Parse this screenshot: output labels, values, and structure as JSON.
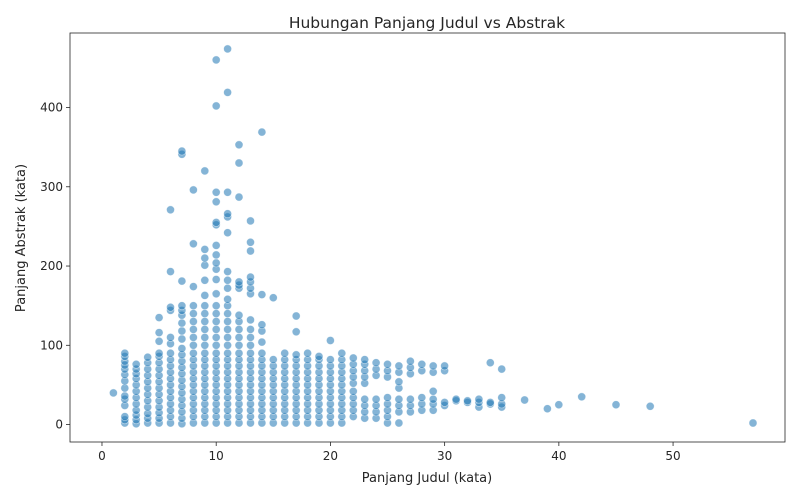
{
  "chart_data": {
    "type": "scatter",
    "title": "Hubungan Panjang Judul vs Abstrak",
    "xlabel": "Panjang Judul (kata)",
    "ylabel": "Panjang Abstrak (kata)",
    "xlim": [
      -2.8,
      59.8
    ],
    "ylim": [
      -22,
      494
    ],
    "xticks": [
      0,
      10,
      20,
      30,
      40,
      50
    ],
    "yticks": [
      0,
      100,
      200,
      300,
      400
    ],
    "grid": false,
    "point_color": "#1f77b4",
    "points": [
      [
        1,
        40
      ],
      [
        2,
        2
      ],
      [
        2,
        6
      ],
      [
        2,
        10
      ],
      [
        2,
        24
      ],
      [
        2,
        32
      ],
      [
        2,
        36
      ],
      [
        2,
        46
      ],
      [
        2,
        55
      ],
      [
        2,
        63
      ],
      [
        2,
        70
      ],
      [
        2,
        75
      ],
      [
        2,
        80
      ],
      [
        2,
        86
      ],
      [
        2,
        90
      ],
      [
        3,
        1
      ],
      [
        3,
        6
      ],
      [
        3,
        12
      ],
      [
        3,
        18
      ],
      [
        3,
        26
      ],
      [
        3,
        34
      ],
      [
        3,
        42
      ],
      [
        3,
        50
      ],
      [
        3,
        58
      ],
      [
        3,
        64
      ],
      [
        3,
        70
      ],
      [
        3,
        76
      ],
      [
        4,
        2
      ],
      [
        4,
        8
      ],
      [
        4,
        14
      ],
      [
        4,
        22
      ],
      [
        4,
        30
      ],
      [
        4,
        38
      ],
      [
        4,
        46
      ],
      [
        4,
        54
      ],
      [
        4,
        62
      ],
      [
        4,
        70
      ],
      [
        4,
        78
      ],
      [
        4,
        85
      ],
      [
        5,
        2
      ],
      [
        5,
        8
      ],
      [
        5,
        15
      ],
      [
        5,
        22
      ],
      [
        5,
        30
      ],
      [
        5,
        38
      ],
      [
        5,
        46
      ],
      [
        5,
        54
      ],
      [
        5,
        62
      ],
      [
        5,
        70
      ],
      [
        5,
        78
      ],
      [
        5,
        86
      ],
      [
        5,
        90
      ],
      [
        5,
        105
      ],
      [
        5,
        116
      ],
      [
        5,
        135
      ],
      [
        6,
        2
      ],
      [
        6,
        10
      ],
      [
        6,
        18
      ],
      [
        6,
        26
      ],
      [
        6,
        34
      ],
      [
        6,
        42
      ],
      [
        6,
        50
      ],
      [
        6,
        58
      ],
      [
        6,
        66
      ],
      [
        6,
        74
      ],
      [
        6,
        82
      ],
      [
        6,
        90
      ],
      [
        6,
        102
      ],
      [
        6,
        110
      ],
      [
        6,
        144
      ],
      [
        6,
        148
      ],
      [
        6,
        193
      ],
      [
        6,
        271
      ],
      [
        7,
        1
      ],
      [
        7,
        8
      ],
      [
        7,
        16
      ],
      [
        7,
        24
      ],
      [
        7,
        32
      ],
      [
        7,
        40
      ],
      [
        7,
        48
      ],
      [
        7,
        56
      ],
      [
        7,
        64
      ],
      [
        7,
        72
      ],
      [
        7,
        80
      ],
      [
        7,
        88
      ],
      [
        7,
        96
      ],
      [
        7,
        108
      ],
      [
        7,
        118
      ],
      [
        7,
        128
      ],
      [
        7,
        138
      ],
      [
        7,
        144
      ],
      [
        7,
        150
      ],
      [
        7,
        181
      ],
      [
        7,
        341
      ],
      [
        7,
        345
      ],
      [
        8,
        2
      ],
      [
        8,
        10
      ],
      [
        8,
        18
      ],
      [
        8,
        26
      ],
      [
        8,
        34
      ],
      [
        8,
        42
      ],
      [
        8,
        50
      ],
      [
        8,
        58
      ],
      [
        8,
        66
      ],
      [
        8,
        74
      ],
      [
        8,
        82
      ],
      [
        8,
        90
      ],
      [
        8,
        100
      ],
      [
        8,
        110
      ],
      [
        8,
        120
      ],
      [
        8,
        130
      ],
      [
        8,
        140
      ],
      [
        8,
        150
      ],
      [
        8,
        174
      ],
      [
        8,
        228
      ],
      [
        8,
        296
      ],
      [
        9,
        2
      ],
      [
        9,
        10
      ],
      [
        9,
        18
      ],
      [
        9,
        26
      ],
      [
        9,
        34
      ],
      [
        9,
        42
      ],
      [
        9,
        50
      ],
      [
        9,
        58
      ],
      [
        9,
        66
      ],
      [
        9,
        74
      ],
      [
        9,
        82
      ],
      [
        9,
        90
      ],
      [
        9,
        100
      ],
      [
        9,
        110
      ],
      [
        9,
        120
      ],
      [
        9,
        130
      ],
      [
        9,
        140
      ],
      [
        9,
        150
      ],
      [
        9,
        163
      ],
      [
        9,
        182
      ],
      [
        9,
        201
      ],
      [
        9,
        210
      ],
      [
        9,
        221
      ],
      [
        9,
        320
      ],
      [
        10,
        2
      ],
      [
        10,
        10
      ],
      [
        10,
        18
      ],
      [
        10,
        26
      ],
      [
        10,
        34
      ],
      [
        10,
        42
      ],
      [
        10,
        50
      ],
      [
        10,
        58
      ],
      [
        10,
        66
      ],
      [
        10,
        74
      ],
      [
        10,
        82
      ],
      [
        10,
        90
      ],
      [
        10,
        100
      ],
      [
        10,
        110
      ],
      [
        10,
        120
      ],
      [
        10,
        130
      ],
      [
        10,
        140
      ],
      [
        10,
        150
      ],
      [
        10,
        165
      ],
      [
        10,
        183
      ],
      [
        10,
        196
      ],
      [
        10,
        204
      ],
      [
        10,
        214
      ],
      [
        10,
        226
      ],
      [
        10,
        252
      ],
      [
        10,
        255
      ],
      [
        10,
        281
      ],
      [
        10,
        293
      ],
      [
        10,
        402
      ],
      [
        10,
        460
      ],
      [
        11,
        2
      ],
      [
        11,
        10
      ],
      [
        11,
        18
      ],
      [
        11,
        26
      ],
      [
        11,
        34
      ],
      [
        11,
        42
      ],
      [
        11,
        50
      ],
      [
        11,
        58
      ],
      [
        11,
        66
      ],
      [
        11,
        74
      ],
      [
        11,
        82
      ],
      [
        11,
        90
      ],
      [
        11,
        100
      ],
      [
        11,
        110
      ],
      [
        11,
        120
      ],
      [
        11,
        130
      ],
      [
        11,
        140
      ],
      [
        11,
        150
      ],
      [
        11,
        158
      ],
      [
        11,
        172
      ],
      [
        11,
        182
      ],
      [
        11,
        193
      ],
      [
        11,
        242
      ],
      [
        11,
        262
      ],
      [
        11,
        266
      ],
      [
        11,
        293
      ],
      [
        11,
        419
      ],
      [
        11,
        474
      ],
      [
        12,
        2
      ],
      [
        12,
        10
      ],
      [
        12,
        18
      ],
      [
        12,
        26
      ],
      [
        12,
        34
      ],
      [
        12,
        42
      ],
      [
        12,
        50
      ],
      [
        12,
        58
      ],
      [
        12,
        66
      ],
      [
        12,
        74
      ],
      [
        12,
        82
      ],
      [
        12,
        90
      ],
      [
        12,
        100
      ],
      [
        12,
        110
      ],
      [
        12,
        120
      ],
      [
        12,
        130
      ],
      [
        12,
        138
      ],
      [
        12,
        172
      ],
      [
        12,
        176
      ],
      [
        12,
        180
      ],
      [
        12,
        287
      ],
      [
        12,
        330
      ],
      [
        12,
        353
      ],
      [
        13,
        2
      ],
      [
        13,
        10
      ],
      [
        13,
        18
      ],
      [
        13,
        26
      ],
      [
        13,
        34
      ],
      [
        13,
        42
      ],
      [
        13,
        50
      ],
      [
        13,
        58
      ],
      [
        13,
        66
      ],
      [
        13,
        74
      ],
      [
        13,
        82
      ],
      [
        13,
        90
      ],
      [
        13,
        100
      ],
      [
        13,
        110
      ],
      [
        13,
        120
      ],
      [
        13,
        132
      ],
      [
        13,
        165
      ],
      [
        13,
        172
      ],
      [
        13,
        180
      ],
      [
        13,
        186
      ],
      [
        13,
        219
      ],
      [
        13,
        230
      ],
      [
        13,
        257
      ],
      [
        14,
        2
      ],
      [
        14,
        10
      ],
      [
        14,
        18
      ],
      [
        14,
        26
      ],
      [
        14,
        34
      ],
      [
        14,
        42
      ],
      [
        14,
        50
      ],
      [
        14,
        58
      ],
      [
        14,
        66
      ],
      [
        14,
        74
      ],
      [
        14,
        82
      ],
      [
        14,
        90
      ],
      [
        14,
        104
      ],
      [
        14,
        118
      ],
      [
        14,
        126
      ],
      [
        14,
        164
      ],
      [
        14,
        369
      ],
      [
        15,
        2
      ],
      [
        15,
        10
      ],
      [
        15,
        18
      ],
      [
        15,
        26
      ],
      [
        15,
        34
      ],
      [
        15,
        42
      ],
      [
        15,
        50
      ],
      [
        15,
        58
      ],
      [
        15,
        66
      ],
      [
        15,
        74
      ],
      [
        15,
        82
      ],
      [
        15,
        160
      ],
      [
        16,
        2
      ],
      [
        16,
        10
      ],
      [
        16,
        18
      ],
      [
        16,
        26
      ],
      [
        16,
        34
      ],
      [
        16,
        42
      ],
      [
        16,
        50
      ],
      [
        16,
        58
      ],
      [
        16,
        66
      ],
      [
        16,
        74
      ],
      [
        16,
        82
      ],
      [
        16,
        90
      ],
      [
        17,
        2
      ],
      [
        17,
        10
      ],
      [
        17,
        18
      ],
      [
        17,
        26
      ],
      [
        17,
        34
      ],
      [
        17,
        42
      ],
      [
        17,
        50
      ],
      [
        17,
        58
      ],
      [
        17,
        66
      ],
      [
        17,
        74
      ],
      [
        17,
        82
      ],
      [
        17,
        88
      ],
      [
        17,
        117
      ],
      [
        17,
        137
      ],
      [
        18,
        2
      ],
      [
        18,
        10
      ],
      [
        18,
        18
      ],
      [
        18,
        26
      ],
      [
        18,
        34
      ],
      [
        18,
        42
      ],
      [
        18,
        50
      ],
      [
        18,
        58
      ],
      [
        18,
        66
      ],
      [
        18,
        74
      ],
      [
        18,
        82
      ],
      [
        18,
        90
      ],
      [
        19,
        2
      ],
      [
        19,
        10
      ],
      [
        19,
        18
      ],
      [
        19,
        26
      ],
      [
        19,
        34
      ],
      [
        19,
        42
      ],
      [
        19,
        50
      ],
      [
        19,
        58
      ],
      [
        19,
        66
      ],
      [
        19,
        74
      ],
      [
        19,
        82
      ],
      [
        19,
        86
      ],
      [
        20,
        2
      ],
      [
        20,
        10
      ],
      [
        20,
        18
      ],
      [
        20,
        26
      ],
      [
        20,
        34
      ],
      [
        20,
        42
      ],
      [
        20,
        50
      ],
      [
        20,
        58
      ],
      [
        20,
        66
      ],
      [
        20,
        74
      ],
      [
        20,
        82
      ],
      [
        20,
        106
      ],
      [
        21,
        2
      ],
      [
        21,
        10
      ],
      [
        21,
        18
      ],
      [
        21,
        26
      ],
      [
        21,
        34
      ],
      [
        21,
        42
      ],
      [
        21,
        50
      ],
      [
        21,
        58
      ],
      [
        21,
        66
      ],
      [
        21,
        74
      ],
      [
        21,
        82
      ],
      [
        21,
        90
      ],
      [
        22,
        10
      ],
      [
        22,
        18
      ],
      [
        22,
        26
      ],
      [
        22,
        34
      ],
      [
        22,
        42
      ],
      [
        22,
        52
      ],
      [
        22,
        60
      ],
      [
        22,
        68
      ],
      [
        22,
        76
      ],
      [
        22,
        84
      ],
      [
        23,
        8
      ],
      [
        23,
        16
      ],
      [
        23,
        24
      ],
      [
        23,
        32
      ],
      [
        23,
        52
      ],
      [
        23,
        60
      ],
      [
        23,
        68
      ],
      [
        23,
        76
      ],
      [
        23,
        82
      ],
      [
        24,
        8
      ],
      [
        24,
        16
      ],
      [
        24,
        24
      ],
      [
        24,
        32
      ],
      [
        24,
        62
      ],
      [
        24,
        70
      ],
      [
        24,
        78
      ],
      [
        25,
        2
      ],
      [
        25,
        10
      ],
      [
        25,
        18
      ],
      [
        25,
        26
      ],
      [
        25,
        34
      ],
      [
        25,
        60
      ],
      [
        25,
        68
      ],
      [
        25,
        76
      ],
      [
        26,
        2
      ],
      [
        26,
        16
      ],
      [
        26,
        24
      ],
      [
        26,
        32
      ],
      [
        26,
        46
      ],
      [
        26,
        54
      ],
      [
        26,
        66
      ],
      [
        26,
        74
      ],
      [
        27,
        16
      ],
      [
        27,
        24
      ],
      [
        27,
        32
      ],
      [
        27,
        64
      ],
      [
        27,
        72
      ],
      [
        27,
        80
      ],
      [
        28,
        18
      ],
      [
        28,
        26
      ],
      [
        28,
        34
      ],
      [
        28,
        68
      ],
      [
        28,
        76
      ],
      [
        29,
        18
      ],
      [
        29,
        26
      ],
      [
        29,
        32
      ],
      [
        29,
        42
      ],
      [
        29,
        66
      ],
      [
        29,
        74
      ],
      [
        30,
        24
      ],
      [
        30,
        28
      ],
      [
        30,
        68
      ],
      [
        30,
        74
      ],
      [
        31,
        30
      ],
      [
        31,
        32
      ],
      [
        32,
        28
      ],
      [
        32,
        30
      ],
      [
        33,
        22
      ],
      [
        33,
        28
      ],
      [
        33,
        32
      ],
      [
        34,
        26
      ],
      [
        34,
        28
      ],
      [
        34,
        78
      ],
      [
        35,
        22
      ],
      [
        35,
        26
      ],
      [
        35,
        34
      ],
      [
        35,
        70
      ],
      [
        37,
        31
      ],
      [
        39,
        20
      ],
      [
        40,
        25
      ],
      [
        42,
        35
      ],
      [
        45,
        25
      ],
      [
        48,
        23
      ],
      [
        57,
        2
      ]
    ]
  }
}
